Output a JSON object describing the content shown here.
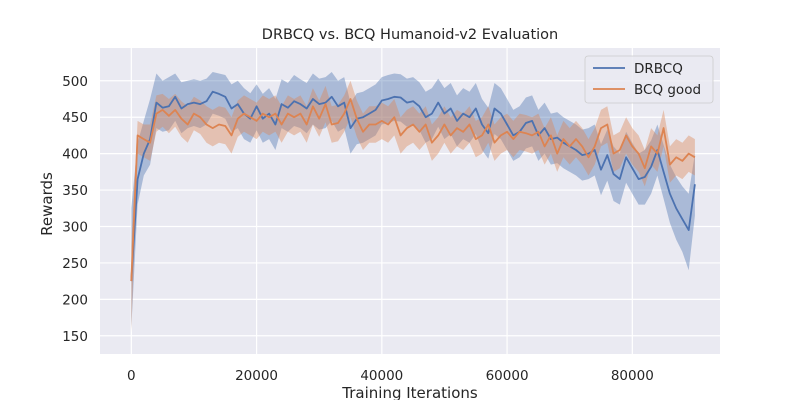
{
  "chart_data": {
    "type": "line",
    "title": "DRBCQ vs. BCQ Humanoid-v2 Evaluation",
    "xlabel": "Training Iterations",
    "ylabel": "Rewards",
    "xlim": [
      -5000,
      94000
    ],
    "ylim": [
      125,
      545
    ],
    "xticks": [
      0,
      20000,
      40000,
      60000,
      80000
    ],
    "yticks": [
      150,
      200,
      250,
      300,
      350,
      400,
      450,
      500
    ],
    "grid": true,
    "legend_position": "top-right",
    "x": [
      0,
      1000,
      2000,
      3000,
      4000,
      5000,
      6000,
      7000,
      8000,
      9000,
      10000,
      11000,
      12000,
      13000,
      14000,
      15000,
      16000,
      17000,
      18000,
      19000,
      20000,
      21000,
      22000,
      23000,
      24000,
      25000,
      26000,
      27000,
      28000,
      29000,
      30000,
      31000,
      32000,
      33000,
      34000,
      35000,
      36000,
      37000,
      38000,
      39000,
      40000,
      41000,
      42000,
      43000,
      44000,
      45000,
      46000,
      47000,
      48000,
      49000,
      50000,
      51000,
      52000,
      53000,
      54000,
      55000,
      56000,
      57000,
      58000,
      59000,
      60000,
      61000,
      62000,
      63000,
      64000,
      65000,
      66000,
      67000,
      68000,
      69000,
      70000,
      71000,
      72000,
      73000,
      74000,
      75000,
      76000,
      77000,
      78000,
      79000,
      80000,
      81000,
      82000,
      83000,
      84000,
      85000,
      86000,
      87000,
      88000,
      89000,
      90000
    ],
    "series": [
      {
        "name": "DRBCQ",
        "color": "#4c72b0",
        "values": [
          225,
          365,
          400,
          420,
          470,
          463,
          465,
          478,
          462,
          468,
          470,
          468,
          472,
          485,
          482,
          478,
          462,
          468,
          455,
          448,
          465,
          448,
          455,
          440,
          468,
          463,
          472,
          468,
          462,
          475,
          468,
          470,
          478,
          465,
          470,
          435,
          448,
          450,
          455,
          460,
          473,
          475,
          478,
          477,
          470,
          472,
          465,
          450,
          455,
          470,
          455,
          462,
          445,
          455,
          450,
          462,
          440,
          428,
          462,
          455,
          440,
          425,
          430,
          442,
          445,
          425,
          435,
          420,
          422,
          415,
          410,
          405,
          398,
          400,
          405,
          378,
          398,
          372,
          365,
          395,
          380,
          365,
          368,
          382,
          405,
          375,
          345,
          325,
          310,
          295,
          358
        ],
        "upper": [
          325,
          415,
          445,
          475,
          510,
          500,
          505,
          510,
          498,
          500,
          502,
          500,
          503,
          512,
          510,
          508,
          495,
          500,
          490,
          483,
          495,
          482,
          490,
          475,
          502,
          497,
          508,
          502,
          497,
          510,
          503,
          505,
          512,
          500,
          505,
          470,
          483,
          485,
          490,
          495,
          505,
          508,
          510,
          509,
          503,
          505,
          498,
          485,
          490,
          503,
          490,
          497,
          480,
          490,
          485,
          497,
          475,
          463,
          497,
          490,
          475,
          460,
          465,
          477,
          480,
          460,
          470,
          455,
          457,
          450,
          445,
          440,
          433,
          435,
          440,
          413,
          433,
          410,
          400,
          430,
          415,
          400,
          405,
          418,
          440,
          412,
          385,
          368,
          355,
          345,
          400
        ],
        "lower": [
          160,
          330,
          370,
          385,
          435,
          430,
          432,
          445,
          428,
          435,
          438,
          435,
          440,
          455,
          452,
          448,
          430,
          435,
          420,
          415,
          432,
          415,
          420,
          405,
          435,
          430,
          438,
          435,
          428,
          440,
          433,
          435,
          445,
          430,
          435,
          400,
          413,
          415,
          420,
          425,
          440,
          442,
          445,
          444,
          437,
          439,
          432,
          415,
          420,
          437,
          420,
          427,
          410,
          420,
          415,
          427,
          405,
          393,
          427,
          420,
          405,
          390,
          395,
          407,
          410,
          390,
          400,
          385,
          387,
          380,
          375,
          370,
          363,
          365,
          370,
          343,
          363,
          335,
          330,
          360,
          345,
          330,
          330,
          345,
          370,
          338,
          305,
          282,
          265,
          240,
          315
        ]
      },
      {
        "name": "BCQ good",
        "color": "#dd8452",
        "values": [
          225,
          425,
          420,
          415,
          455,
          460,
          452,
          460,
          448,
          440,
          455,
          450,
          440,
          435,
          440,
          438,
          425,
          448,
          455,
          450,
          445,
          455,
          450,
          455,
          440,
          455,
          450,
          455,
          440,
          465,
          448,
          468,
          440,
          442,
          455,
          475,
          448,
          430,
          440,
          440,
          445,
          440,
          450,
          425,
          435,
          440,
          430,
          440,
          415,
          425,
          440,
          425,
          435,
          430,
          440,
          420,
          425,
          440,
          415,
          425,
          430,
          420,
          430,
          428,
          425,
          430,
          410,
          425,
          400,
          420,
          410,
          420,
          410,
          395,
          410,
          435,
          440,
          400,
          405,
          425,
          410,
          400,
          380,
          410,
          400,
          435,
          385,
          395,
          390,
          400,
          395
        ],
        "upper": [
          275,
          445,
          440,
          440,
          480,
          482,
          475,
          482,
          472,
          465,
          478,
          473,
          465,
          460,
          465,
          463,
          450,
          473,
          480,
          475,
          470,
          480,
          475,
          480,
          465,
          480,
          475,
          480,
          465,
          490,
          473,
          493,
          465,
          467,
          480,
          500,
          473,
          455,
          465,
          465,
          470,
          465,
          475,
          450,
          460,
          465,
          455,
          465,
          440,
          450,
          465,
          450,
          460,
          455,
          465,
          445,
          450,
          465,
          440,
          450,
          455,
          445,
          455,
          453,
          450,
          455,
          435,
          450,
          425,
          445,
          435,
          445,
          435,
          420,
          435,
          460,
          465,
          425,
          430,
          450,
          435,
          425,
          405,
          435,
          425,
          460,
          410,
          420,
          415,
          425,
          420
        ],
        "lower": [
          155,
          400,
          395,
          390,
          430,
          437,
          428,
          437,
          423,
          415,
          432,
          427,
          415,
          410,
          415,
          413,
          400,
          423,
          430,
          425,
          420,
          430,
          425,
          430,
          415,
          430,
          425,
          430,
          415,
          440,
          423,
          443,
          415,
          417,
          430,
          450,
          423,
          405,
          415,
          415,
          420,
          415,
          425,
          400,
          410,
          415,
          405,
          415,
          390,
          400,
          415,
          400,
          410,
          405,
          415,
          395,
          400,
          415,
          390,
          400,
          405,
          395,
          405,
          403,
          400,
          405,
          385,
          400,
          375,
          395,
          385,
          395,
          385,
          370,
          385,
          410,
          415,
          375,
          380,
          400,
          385,
          375,
          355,
          385,
          375,
          410,
          360,
          370,
          365,
          375,
          370
        ]
      }
    ]
  }
}
